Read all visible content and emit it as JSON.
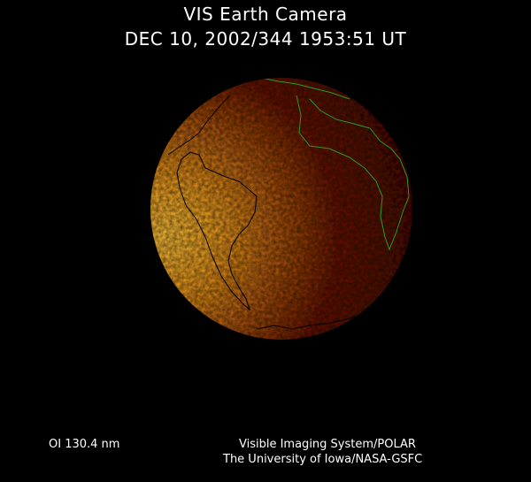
{
  "header": {
    "title": "VIS Earth Camera",
    "timestamp": "DEC 10, 2002/344 1953:51 UT"
  },
  "footer": {
    "band": "OI  130.4 nm",
    "credit_line1": "Visible Imaging System/POLAR",
    "credit_line2": "The University of Iowa/NASA-GSFC"
  },
  "image": {
    "colors": {
      "dayside": "#f5a520",
      "nightside": "#4a0a02",
      "coastline_day": "#000000",
      "coastline_night": "#2e9a1e"
    }
  }
}
